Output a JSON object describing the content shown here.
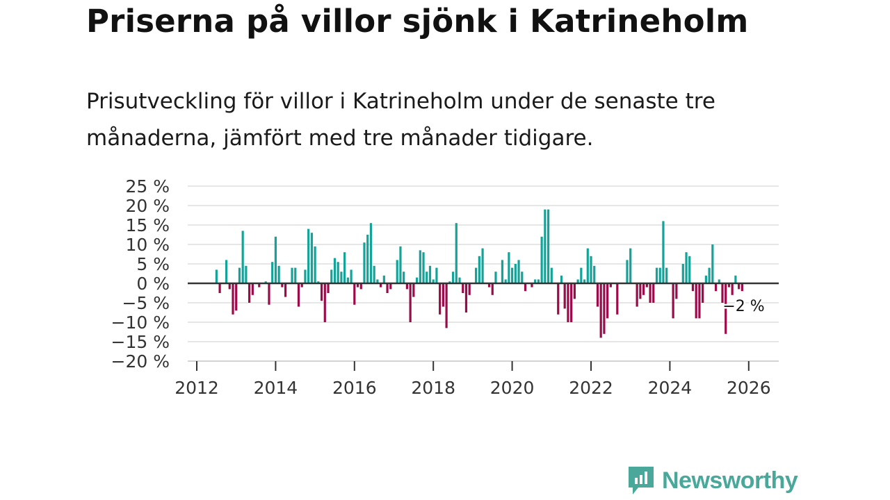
{
  "header": {
    "title": "Priserna på villor sjönk i Katrineholm",
    "subtitle": "Prisutveckling för villor i Katrineholm under de senaste tre månaderna, jämfört med tre månader tidigare."
  },
  "brand": {
    "name": "Newsworthy",
    "color": "#49a89a"
  },
  "chart_data": {
    "type": "bar",
    "title": "Priserna på villor sjönk i Katrineholm",
    "subtitle": "Prisutveckling för villor i Katrineholm under de senaste tre månaderna, jämfört med tre månader tidigare.",
    "xlabel": "",
    "ylabel": "",
    "unit": "%",
    "ylim": [
      -20,
      25
    ],
    "yticks": [
      25,
      20,
      15,
      10,
      5,
      0,
      -5,
      -10,
      -15,
      -20
    ],
    "ytick_labels": [
      "25 %",
      "20 %",
      "15 %",
      "10 %",
      "5 %",
      "0 %",
      "−5 %",
      "−10 %",
      "−15 %",
      "−20 %"
    ],
    "xlim": [
      2012,
      2026.8
    ],
    "xticks": [
      2012,
      2014,
      2016,
      2018,
      2020,
      2022,
      2024,
      2026
    ],
    "xtick_labels": [
      "2012",
      "2014",
      "2016",
      "2018",
      "2020",
      "2022",
      "2024",
      "2026"
    ],
    "grid": true,
    "colors": {
      "positive": "#13a398",
      "negative": "#9c0a49",
      "zero_line": "#333333",
      "grid": "#dddddd"
    },
    "end_label": "−2 %",
    "series": [
      {
        "name": "Prisutveckling",
        "start": "2012-07",
        "frequency": "monthly",
        "values": [
          3.5,
          -2.5,
          0,
          6,
          -1.5,
          -8,
          -7,
          4,
          13.5,
          4.5,
          -5,
          -3,
          0,
          -1,
          0,
          0.5,
          -5.5,
          5.5,
          12,
          4.5,
          -1,
          -3.5,
          0,
          4,
          4,
          -6,
          -1,
          3.5,
          14,
          13,
          9.5,
          0.5,
          -4.5,
          -10,
          -2.5,
          3.5,
          6.5,
          5.5,
          3,
          8,
          1.5,
          3.5,
          -5.5,
          -1,
          -1.5,
          10.5,
          12.5,
          15.5,
          4.5,
          1,
          -1,
          2,
          -2.5,
          -1.5,
          0,
          6,
          9.5,
          3,
          -1.5,
          -10,
          -3.5,
          1.5,
          8.5,
          8,
          3,
          4.5,
          1,
          4,
          -8,
          -6,
          -11.5,
          0.5,
          3,
          15.5,
          1.5,
          -2.5,
          -7.5,
          -3,
          0,
          4,
          7,
          9,
          0,
          -1,
          -3,
          3,
          0,
          6,
          1,
          8,
          4,
          5,
          6,
          3,
          -2,
          0,
          -1,
          1,
          1,
          12,
          19,
          19,
          4,
          0,
          -8,
          2,
          -6.5,
          -10,
          -10,
          -4,
          1,
          4,
          1,
          9,
          7,
          4.5,
          -6,
          -14,
          -13,
          -9,
          -1,
          0,
          -8,
          0,
          0,
          6,
          9,
          0,
          -6,
          -4,
          -3,
          -1,
          -5,
          -5,
          4,
          4,
          16,
          4,
          0,
          -9,
          -4,
          0,
          5,
          8,
          7,
          -2,
          -9,
          -9,
          -5,
          2,
          4,
          10,
          -2,
          1,
          -5,
          -13,
          -1,
          -3,
          2,
          -1.5,
          -2
        ]
      }
    ]
  }
}
